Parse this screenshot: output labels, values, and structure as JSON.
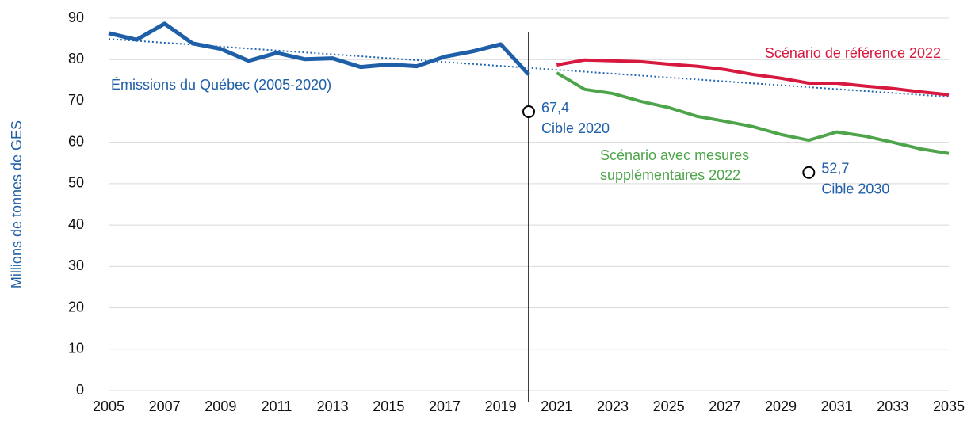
{
  "chart_data": {
    "type": "line",
    "ylabel": "Millions de tonnes de GES",
    "xlim": [
      2005,
      2035
    ],
    "ylim": [
      0,
      90
    ],
    "xticks": [
      2005,
      2007,
      2009,
      2011,
      2013,
      2015,
      2017,
      2019,
      2021,
      2023,
      2025,
      2027,
      2029,
      2031,
      2033,
      2035
    ],
    "yticks": [
      0,
      10,
      20,
      30,
      40,
      50,
      60,
      70,
      80,
      90
    ],
    "grid": true,
    "vline": 2020,
    "series": [
      {
        "name": "Émissions du Québec (2005-2020)",
        "color": "#1f5fa8",
        "width": 5,
        "x": [
          2005,
          2006,
          2007,
          2008,
          2009,
          2010,
          2011,
          2012,
          2013,
          2014,
          2015,
          2016,
          2017,
          2018,
          2019,
          2020
        ],
        "values": [
          86.4,
          84.8,
          88.7,
          83.9,
          82.6,
          79.7,
          81.6,
          80.1,
          80.3,
          78.2,
          78.8,
          78.4,
          80.7,
          82.0,
          83.7,
          76.4
        ]
      },
      {
        "color": "#2166b0",
        "width": 2,
        "dash": true,
        "x": [
          2005,
          2035
        ],
        "values": [
          85.0,
          71.0
        ]
      },
      {
        "name": "Scénario de référence 2022",
        "color": "#d7193f",
        "width": 4,
        "x": [
          2021,
          2022,
          2023,
          2024,
          2025,
          2026,
          2027,
          2028,
          2029,
          2030,
          2031,
          2032,
          2033,
          2034,
          2035
        ],
        "values": [
          78.7,
          79.9,
          79.7,
          79.5,
          78.9,
          78.4,
          77.6,
          76.4,
          75.5,
          74.3,
          74.3,
          73.6,
          73.0,
          72.2,
          71.5
        ]
      },
      {
        "name": "Scénario avec mesures supplémentaires 2022",
        "color": "#4ea44a",
        "width": 4,
        "x": [
          2021,
          2022,
          2023,
          2024,
          2025,
          2026,
          2027,
          2028,
          2029,
          2030,
          2031,
          2032,
          2033,
          2034,
          2035
        ],
        "values": [
          76.8,
          72.8,
          71.8,
          69.9,
          68.4,
          66.3,
          65.1,
          63.8,
          61.9,
          60.5,
          62.5,
          61.5,
          60.0,
          58.4,
          57.3
        ]
      }
    ],
    "targets": {
      "x": [
        2020,
        2030
      ],
      "values": [
        67.4,
        52.7
      ],
      "value_labels": [
        "67,4",
        "52,7"
      ],
      "labels": [
        "Cible 2020",
        "Cible 2030"
      ],
      "color": "#1f5fa8"
    }
  }
}
